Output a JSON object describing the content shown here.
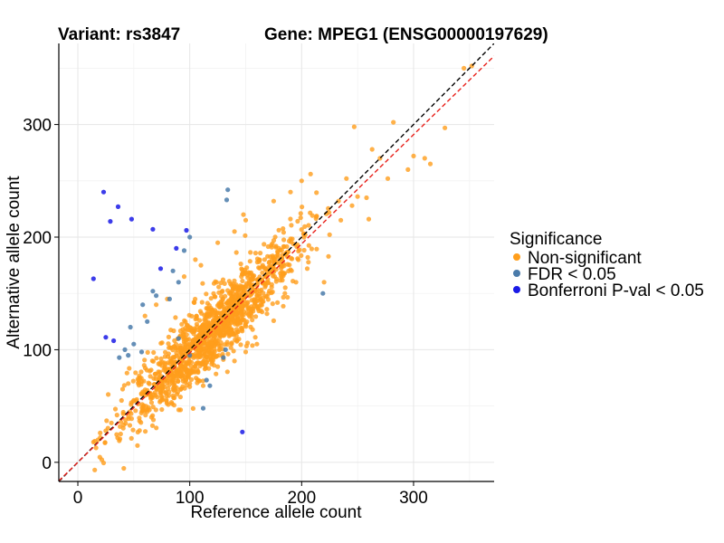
{
  "chart_data": {
    "type": "scatter",
    "title_left": "Variant: rs3847",
    "title_right": "Gene: MPEG1 (ENSG00000197629)",
    "xlabel": "Reference allele count",
    "ylabel": "Alternative allele count",
    "xlim": [
      -17,
      372
    ],
    "ylim": [
      -17,
      372
    ],
    "xticks": [
      0,
      100,
      200,
      300
    ],
    "yticks": [
      0,
      100,
      200,
      300
    ],
    "grid": true,
    "legend": {
      "title": "Significance",
      "placement": "right",
      "entries": [
        {
          "label": "Non-significant",
          "color": "#FF9E1B"
        },
        {
          "label": "FDR < 0.05",
          "color": "#4A7BAA"
        },
        {
          "label": "Bonferroni P-val < 0.05",
          "color": "#1A1AE6"
        }
      ]
    },
    "reference_lines": [
      {
        "style": "dashed",
        "color": "#000000",
        "slope": 1.0,
        "intercept": 0
      },
      {
        "style": "dashed",
        "color": "#E8201A",
        "slope": 0.97,
        "intercept": 0
      }
    ],
    "series": [
      {
        "name": "Non-significant",
        "color": "#FF9E1B",
        "cluster": {
          "count": 1400,
          "x_min": 15,
          "x_max": 230,
          "spread": 16,
          "seed": 7
        },
        "points": [
          [
            247,
            298
          ],
          [
            282,
            302
          ],
          [
            328,
            297
          ],
          [
            263,
            278
          ],
          [
            270,
            270
          ],
          [
            277,
            252
          ],
          [
            300,
            272
          ],
          [
            310,
            270
          ],
          [
            315,
            265
          ],
          [
            295,
            260
          ],
          [
            258,
            235
          ],
          [
            260,
            216
          ],
          [
            250,
            236
          ],
          [
            345,
            350
          ],
          [
            352,
            352
          ],
          [
            240,
            252
          ],
          [
            208,
            256
          ],
          [
            200,
            250
          ],
          [
            233,
            232
          ],
          [
            245,
            228
          ],
          [
            235,
            215
          ],
          [
            190,
            240
          ],
          [
            175,
            232
          ],
          [
            148,
            220
          ],
          [
            140,
            205
          ],
          [
            150,
            215
          ],
          [
            195,
            160
          ],
          [
            205,
            172
          ],
          [
            220,
            160
          ],
          [
            185,
            150
          ],
          [
            170,
            160
          ],
          [
            160,
            138
          ],
          [
            125,
            195
          ],
          [
            110,
            175
          ],
          [
            95,
            165
          ],
          [
            105,
            180
          ],
          [
            60,
            130
          ],
          [
            70,
            140
          ],
          [
            80,
            145
          ],
          [
            150,
            98
          ],
          [
            160,
            105
          ],
          [
            140,
            90
          ],
          [
            125,
            85
          ],
          [
            100,
            70
          ],
          [
            90,
            78
          ],
          [
            112,
            68
          ],
          [
            45,
            70
          ],
          [
            55,
            75
          ],
          [
            40,
            65
          ],
          [
            30,
            35
          ],
          [
            25,
            28
          ],
          [
            18,
            20
          ],
          [
            14,
            18
          ],
          [
            35,
            42
          ],
          [
            20,
            22
          ],
          [
            50,
            55
          ],
          [
            62,
            45
          ],
          [
            85,
            65
          ],
          [
            75,
            70
          ]
        ]
      },
      {
        "name": "FDR < 0.05",
        "color": "#4A7BAA",
        "points": [
          [
            134,
            242
          ],
          [
            133,
            233
          ],
          [
            100,
            200
          ],
          [
            95,
            188
          ],
          [
            85,
            170
          ],
          [
            67,
            152
          ],
          [
            70,
            148
          ],
          [
            82,
            145
          ],
          [
            90,
            160
          ],
          [
            58,
            140
          ],
          [
            47,
            120
          ],
          [
            62,
            125
          ],
          [
            50,
            105
          ],
          [
            42,
            100
          ],
          [
            37,
            93
          ],
          [
            45,
            95
          ],
          [
            57,
            98
          ],
          [
            90,
            110
          ],
          [
            132,
            100
          ],
          [
            130,
            93
          ],
          [
            115,
            73
          ],
          [
            118,
            68
          ],
          [
            112,
            48
          ],
          [
            100,
            95
          ],
          [
            219,
            150
          ]
        ]
      },
      {
        "name": "Bonferroni P-val < 0.05",
        "color": "#1A1AE6",
        "points": [
          [
            23,
            240
          ],
          [
            36,
            227
          ],
          [
            48,
            216
          ],
          [
            29,
            214
          ],
          [
            67,
            207
          ],
          [
            97,
            206
          ],
          [
            88,
            190
          ],
          [
            74,
            172
          ],
          [
            14,
            163
          ],
          [
            25,
            111
          ],
          [
            32,
            108
          ],
          [
            147,
            27
          ]
        ]
      }
    ]
  }
}
